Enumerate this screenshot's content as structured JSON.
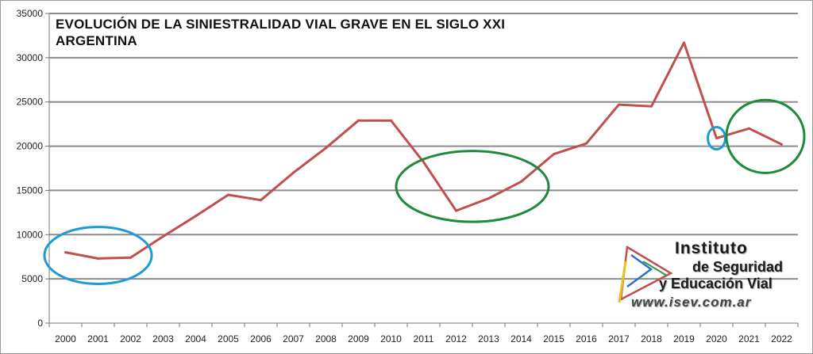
{
  "title": {
    "line1": "EVOLUCIÓN DE LA SINIESTRALIDAD VIAL GRAVE EN EL SIGLO XXI",
    "line2": "ARGENTINA"
  },
  "logo": {
    "line1": "Instituto",
    "line2": "de Seguridad",
    "line3": "y Educación Vial",
    "url": "www.isev.com.ar"
  },
  "colors": {
    "series": "#c0504d",
    "grid": "#8c8c8c",
    "highlight_blue": "#1f9ad6",
    "highlight_green": "#1f8a3a"
  },
  "chart_data": {
    "type": "line",
    "title": "EVOLUCIÓN DE LA SINIESTRALIDAD VIAL GRAVE EN EL SIGLO XXI ARGENTINA",
    "xlabel": "",
    "ylabel": "",
    "ylim": [
      0,
      35000
    ],
    "yticks": [
      "0",
      "5000",
      "10000",
      "15000",
      "20000",
      "25000",
      "30000",
      "35000"
    ],
    "grid": true,
    "legend": "none",
    "categories": [
      "2000",
      "2001",
      "2002",
      "2003",
      "2004",
      "2005",
      "2006",
      "2007",
      "2008",
      "2009",
      "2010",
      "2011",
      "2012",
      "2013",
      "2014",
      "2015",
      "2016",
      "2017",
      "2018",
      "2019",
      "2020",
      "2021",
      "2022"
    ],
    "series": [
      {
        "values": [
          8000,
          7300,
          7400,
          9800,
          12100,
          14500,
          13900,
          17000,
          19800,
          22900,
          22900,
          18200,
          12700,
          14100,
          16000,
          19100,
          20300,
          24700,
          24500,
          31700,
          20900,
          22000,
          20200
        ]
      }
    ],
    "highlights": [
      {
        "shape": "ellipse",
        "color": "blue",
        "years": [
          "2000",
          "2002"
        ]
      },
      {
        "shape": "ellipse",
        "color": "green",
        "years": [
          "2011",
          "2014"
        ]
      },
      {
        "shape": "ellipse",
        "color": "blue",
        "years": [
          "2020",
          "2020"
        ]
      },
      {
        "shape": "ellipse",
        "color": "green",
        "years": [
          "2021",
          "2022"
        ]
      }
    ]
  }
}
